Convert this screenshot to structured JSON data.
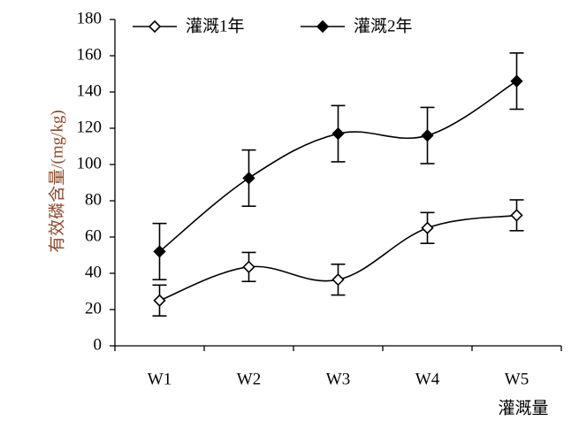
{
  "chart_data": {
    "type": "line",
    "categories": [
      "W1",
      "W2",
      "W3",
      "W4",
      "W5"
    ],
    "series": [
      {
        "name": "灌溉1年",
        "marker": "open-diamond",
        "color": "#000000",
        "values": [
          25,
          43.5,
          36.5,
          65,
          72
        ],
        "error": [
          8.5,
          8,
          8.5,
          8.5,
          8.5
        ]
      },
      {
        "name": "灌溉2年",
        "marker": "filled-diamond",
        "color": "#000000",
        "values": [
          52,
          92.5,
          117,
          116,
          146
        ],
        "error": [
          15.5,
          15.5,
          15.5,
          15.5,
          15.5
        ]
      }
    ],
    "xlabel": "灌溉量",
    "ylabel": "有效磷含量/(mg/kg)",
    "ylim": [
      0,
      180
    ],
    "yticks": [
      0,
      20,
      40,
      60,
      80,
      100,
      120,
      140,
      160,
      180
    ],
    "legend_position": "top",
    "grid": false,
    "smooth_lines": true,
    "error_bars": true
  }
}
